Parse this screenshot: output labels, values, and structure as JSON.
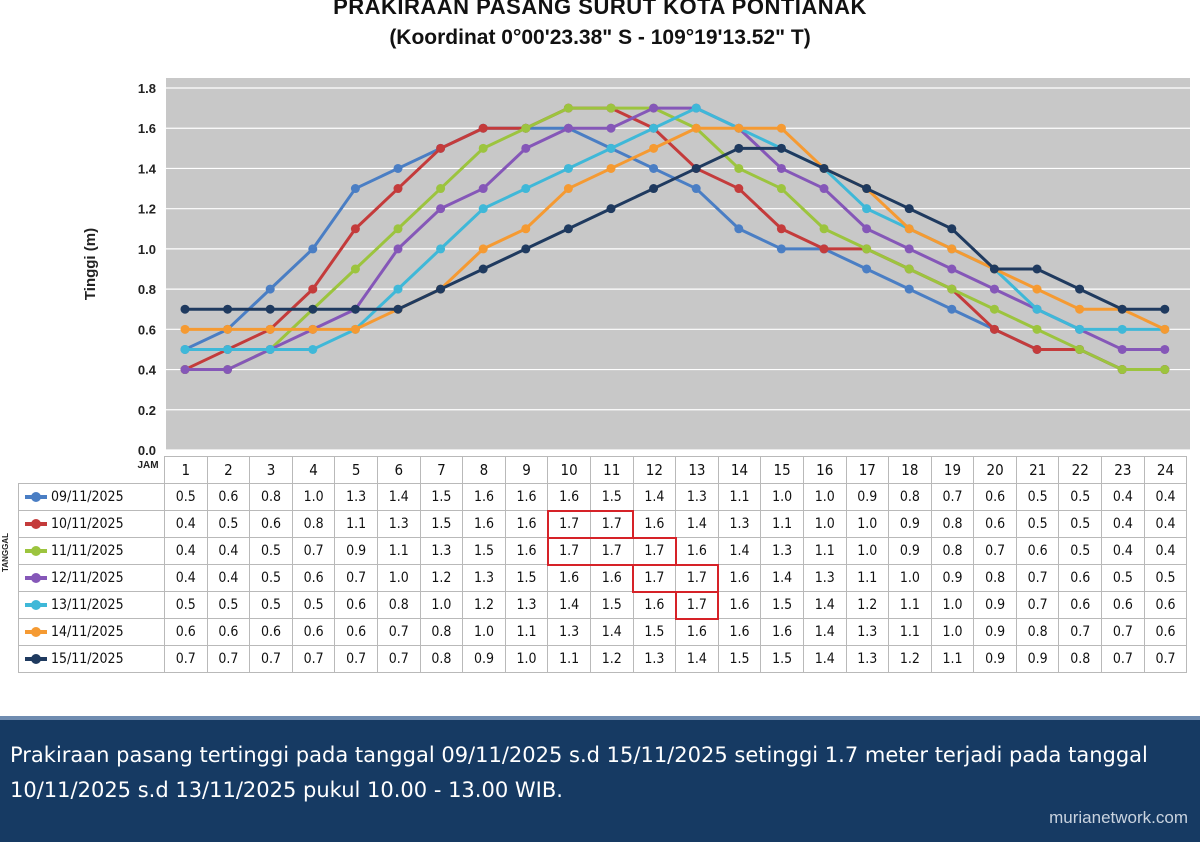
{
  "title": {
    "line1": "PRAKIRAAN PASANG SURUT KOTA PONTIANAK",
    "line2": "(Koordinat 0°00'23.38\" S - 109°19'13.52\" T)"
  },
  "chart_data": {
    "type": "line",
    "title": "PRAKIRAAN PASANG SURUT KOTA PONTIANAK",
    "subtitle": "(Koordinat 0°00'23.38\" S - 109°19'13.52\" T)",
    "xlabel": "JAM",
    "ylabel": "Tinggi (m)",
    "table_row_label": "TANGGAL",
    "ylim": [
      0,
      1.8
    ],
    "yticks": [
      "0.0",
      "0.2",
      "0.4",
      "0.6",
      "0.8",
      "1.0",
      "1.2",
      "1.4",
      "1.6",
      "1.8"
    ],
    "grid": true,
    "categories": [
      "1",
      "2",
      "3",
      "4",
      "5",
      "6",
      "7",
      "8",
      "9",
      "10",
      "11",
      "12",
      "13",
      "14",
      "15",
      "16",
      "17",
      "18",
      "19",
      "20",
      "21",
      "22",
      "23",
      "24"
    ],
    "series": [
      {
        "name": "09/11/2025",
        "color": "#4a7ec4",
        "values": [
          0.5,
          0.6,
          0.8,
          1.0,
          1.3,
          1.4,
          1.5,
          1.6,
          1.6,
          1.6,
          1.5,
          1.4,
          1.3,
          1.1,
          1.0,
          1.0,
          0.9,
          0.8,
          0.7,
          0.6,
          0.5,
          0.5,
          0.4,
          0.4
        ]
      },
      {
        "name": "10/11/2025",
        "color": "#c43b3b",
        "values": [
          0.4,
          0.5,
          0.6,
          0.8,
          1.1,
          1.3,
          1.5,
          1.6,
          1.6,
          1.7,
          1.7,
          1.6,
          1.4,
          1.3,
          1.1,
          1.0,
          1.0,
          0.9,
          0.8,
          0.6,
          0.5,
          0.5,
          0.4,
          0.4
        ]
      },
      {
        "name": "11/11/2025",
        "color": "#9cc43e",
        "values": [
          0.4,
          0.4,
          0.5,
          0.7,
          0.9,
          1.1,
          1.3,
          1.5,
          1.6,
          1.7,
          1.7,
          1.7,
          1.6,
          1.4,
          1.3,
          1.1,
          1.0,
          0.9,
          0.8,
          0.7,
          0.6,
          0.5,
          0.4,
          0.4
        ]
      },
      {
        "name": "12/11/2025",
        "color": "#8557b8",
        "values": [
          0.4,
          0.4,
          0.5,
          0.6,
          0.7,
          1.0,
          1.2,
          1.3,
          1.5,
          1.6,
          1.6,
          1.7,
          1.7,
          1.6,
          1.4,
          1.3,
          1.1,
          1.0,
          0.9,
          0.8,
          0.7,
          0.6,
          0.5,
          0.5
        ]
      },
      {
        "name": "13/11/2025",
        "color": "#3fb8d8",
        "values": [
          0.5,
          0.5,
          0.5,
          0.5,
          0.6,
          0.8,
          1.0,
          1.2,
          1.3,
          1.4,
          1.5,
          1.6,
          1.7,
          1.6,
          1.5,
          1.4,
          1.2,
          1.1,
          1.0,
          0.9,
          0.7,
          0.6,
          0.6,
          0.6
        ]
      },
      {
        "name": "14/11/2025",
        "color": "#f59a32",
        "values": [
          0.6,
          0.6,
          0.6,
          0.6,
          0.6,
          0.7,
          0.8,
          1.0,
          1.1,
          1.3,
          1.4,
          1.5,
          1.6,
          1.6,
          1.6,
          1.4,
          1.3,
          1.1,
          1.0,
          0.9,
          0.8,
          0.7,
          0.7,
          0.6
        ]
      },
      {
        "name": "15/11/2025",
        "color": "#1f3a5f",
        "values": [
          0.7,
          0.7,
          0.7,
          0.7,
          0.7,
          0.7,
          0.8,
          0.9,
          1.0,
          1.1,
          1.2,
          1.3,
          1.4,
          1.5,
          1.5,
          1.4,
          1.3,
          1.2,
          1.1,
          0.9,
          0.9,
          0.8,
          0.7,
          0.7
        ]
      }
    ],
    "highlights": [
      {
        "series": "10/11/2025",
        "hours": [
          "10",
          "11"
        ]
      },
      {
        "series": "11/11/2025",
        "hours": [
          "10",
          "11",
          "12"
        ]
      },
      {
        "series": "12/11/2025",
        "hours": [
          "12",
          "13"
        ]
      },
      {
        "series": "13/11/2025",
        "hours": [
          "13"
        ]
      }
    ],
    "highlight_color": "#d62228"
  },
  "footer": {
    "text": "Prakiraan pasang tertinggi pada tanggal 09/11/2025 s.d 15/11/2025 setinggi 1.7 meter terjadi pada tanggal 10/11/2025 s.d 13/11/2025 pukul 10.00 - 13.00 WIB."
  },
  "watermark": "murianetwork.com"
}
